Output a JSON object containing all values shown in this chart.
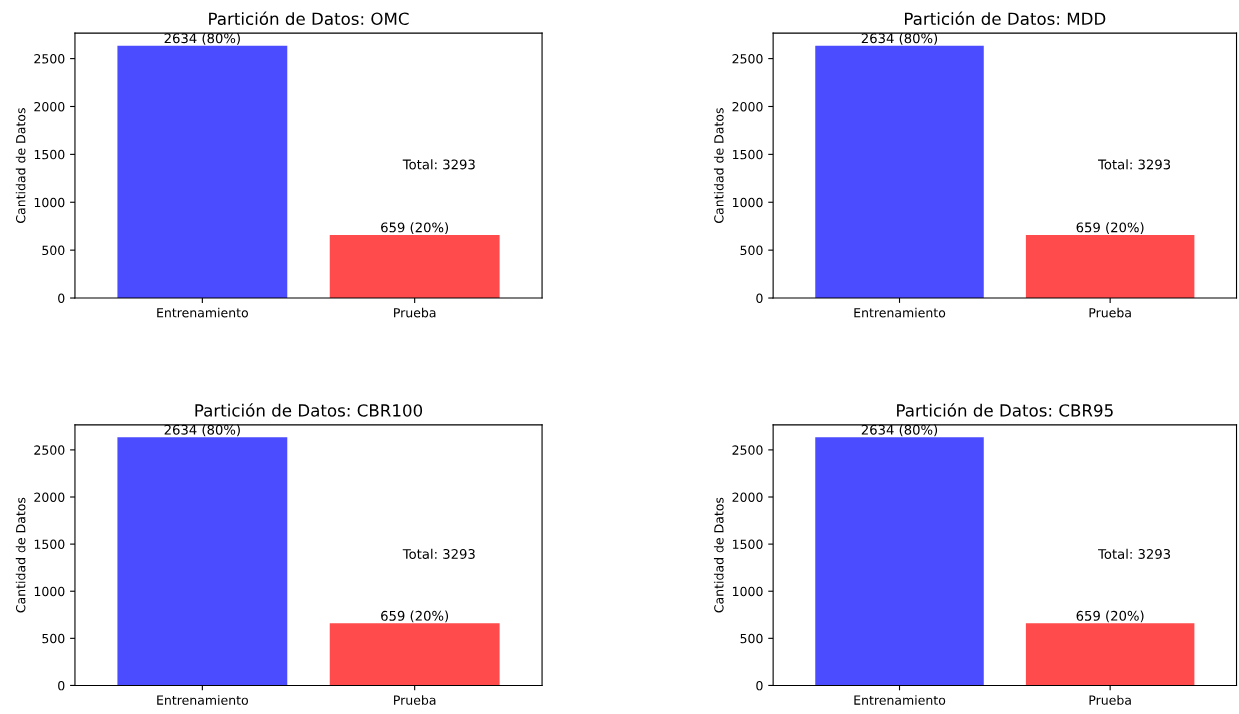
{
  "chart_data": [
    {
      "type": "bar",
      "title": "Partición de Datos: OMC",
      "ylabel": "Cantidad de Datos",
      "categories": [
        "Entrenamiento",
        "Prueba"
      ],
      "values": [
        2634,
        659
      ],
      "colors": [
        "#4b4bff",
        "#ff4b4b"
      ],
      "value_labels": [
        "2634 (80%)",
        "659 (20%)"
      ],
      "annotations": [
        "Total: 3293"
      ],
      "ylim": [
        0,
        2766
      ],
      "yticks": [
        0,
        500,
        1000,
        1500,
        2000,
        2500
      ],
      "grid": false
    },
    {
      "type": "bar",
      "title": "Partición de Datos: MDD",
      "ylabel": "Cantidad de Datos",
      "categories": [
        "Entrenamiento",
        "Prueba"
      ],
      "values": [
        2634,
        659
      ],
      "colors": [
        "#4b4bff",
        "#ff4b4b"
      ],
      "value_labels": [
        "2634 (80%)",
        "659 (20%)"
      ],
      "annotations": [
        "Total: 3293"
      ],
      "ylim": [
        0,
        2766
      ],
      "yticks": [
        0,
        500,
        1000,
        1500,
        2000,
        2500
      ],
      "grid": false
    },
    {
      "type": "bar",
      "title": "Partición de Datos: CBR100",
      "ylabel": "Cantidad de Datos",
      "categories": [
        "Entrenamiento",
        "Prueba"
      ],
      "values": [
        2634,
        659
      ],
      "colors": [
        "#4b4bff",
        "#ff4b4b"
      ],
      "value_labels": [
        "2634 (80%)",
        "659 (20%)"
      ],
      "annotations": [
        "Total: 3293"
      ],
      "ylim": [
        0,
        2766
      ],
      "yticks": [
        0,
        500,
        1000,
        1500,
        2000,
        2500
      ],
      "grid": false
    },
    {
      "type": "bar",
      "title": "Partición de Datos: CBR95",
      "ylabel": "Cantidad de Datos",
      "categories": [
        "Entrenamiento",
        "Prueba"
      ],
      "values": [
        2634,
        659
      ],
      "colors": [
        "#4b4bff",
        "#ff4b4b"
      ],
      "value_labels": [
        "2634 (80%)",
        "659 (20%)"
      ],
      "annotations": [
        "Total: 3293"
      ],
      "ylim": [
        0,
        2766
      ],
      "yticks": [
        0,
        500,
        1000,
        1500,
        2000,
        2500
      ],
      "grid": false
    }
  ]
}
